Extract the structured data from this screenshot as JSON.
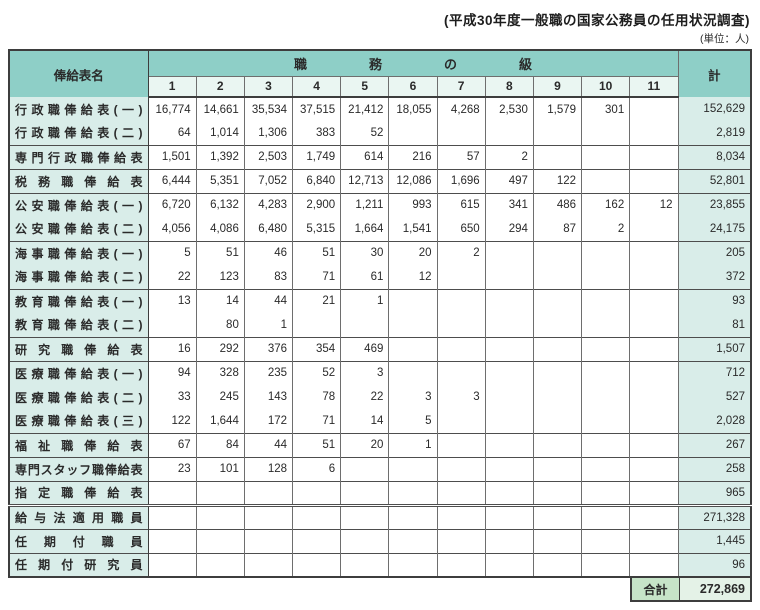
{
  "page": {
    "title": "(平成30年度一般職の国家公務員の任用状況調査)",
    "unit_note": "(単位：人)"
  },
  "table": {
    "type": "table",
    "corner_header": "俸給表名",
    "grade_header": "職務の級",
    "total_header": "計",
    "grades": [
      "1",
      "2",
      "3",
      "4",
      "5",
      "6",
      "7",
      "8",
      "9",
      "10",
      "11"
    ],
    "rows": [
      {
        "label": "行政職俸給表(一)",
        "section_start": false,
        "double_above": false,
        "values": [
          "16,774",
          "14,661",
          "35,534",
          "37,515",
          "21,412",
          "18,055",
          "4,268",
          "2,530",
          "1,579",
          "301",
          ""
        ],
        "total": "152,629"
      },
      {
        "label": "行政職俸給表(二)",
        "section_start": false,
        "double_above": false,
        "values": [
          "64",
          "1,014",
          "1,306",
          "383",
          "52",
          "",
          "",
          "",
          "",
          "",
          ""
        ],
        "total": "2,819"
      },
      {
        "label": "専門行政職俸給表",
        "section_start": true,
        "double_above": false,
        "values": [
          "1,501",
          "1,392",
          "2,503",
          "1,749",
          "614",
          "216",
          "57",
          "2",
          "",
          "",
          ""
        ],
        "total": "8,034"
      },
      {
        "label": "税務職俸給表",
        "section_start": true,
        "double_above": false,
        "values": [
          "6,444",
          "5,351",
          "7,052",
          "6,840",
          "12,713",
          "12,086",
          "1,696",
          "497",
          "122",
          "",
          ""
        ],
        "total": "52,801"
      },
      {
        "label": "公安職俸給表(一)",
        "section_start": true,
        "double_above": false,
        "values": [
          "6,720",
          "6,132",
          "4,283",
          "2,900",
          "1,211",
          "993",
          "615",
          "341",
          "486",
          "162",
          "12"
        ],
        "total": "23,855"
      },
      {
        "label": "公安職俸給表(二)",
        "section_start": false,
        "double_above": false,
        "values": [
          "4,056",
          "4,086",
          "6,480",
          "5,315",
          "1,664",
          "1,541",
          "650",
          "294",
          "87",
          "2",
          ""
        ],
        "total": "24,175"
      },
      {
        "label": "海事職俸給表(一)",
        "section_start": true,
        "double_above": false,
        "values": [
          "5",
          "51",
          "46",
          "51",
          "30",
          "20",
          "2",
          "",
          "",
          "",
          ""
        ],
        "total": "205"
      },
      {
        "label": "海事職俸給表(二)",
        "section_start": false,
        "double_above": false,
        "values": [
          "22",
          "123",
          "83",
          "71",
          "61",
          "12",
          "",
          "",
          "",
          "",
          ""
        ],
        "total": "372"
      },
      {
        "label": "教育職俸給表(一)",
        "section_start": true,
        "double_above": false,
        "values": [
          "13",
          "14",
          "44",
          "21",
          "1",
          "",
          "",
          "",
          "",
          "",
          ""
        ],
        "total": "93"
      },
      {
        "label": "教育職俸給表(二)",
        "section_start": false,
        "double_above": false,
        "values": [
          "",
          "80",
          "1",
          "",
          "",
          "",
          "",
          "",
          "",
          "",
          ""
        ],
        "total": "81"
      },
      {
        "label": "研究職俸給表",
        "section_start": true,
        "double_above": false,
        "values": [
          "16",
          "292",
          "376",
          "354",
          "469",
          "",
          "",
          "",
          "",
          "",
          ""
        ],
        "total": "1,507"
      },
      {
        "label": "医療職俸給表(一)",
        "section_start": true,
        "double_above": false,
        "values": [
          "94",
          "328",
          "235",
          "52",
          "3",
          "",
          "",
          "",
          "",
          "",
          ""
        ],
        "total": "712"
      },
      {
        "label": "医療職俸給表(二)",
        "section_start": false,
        "double_above": false,
        "values": [
          "33",
          "245",
          "143",
          "78",
          "22",
          "3",
          "3",
          "",
          "",
          "",
          ""
        ],
        "total": "527"
      },
      {
        "label": "医療職俸給表(三)",
        "section_start": false,
        "double_above": false,
        "values": [
          "122",
          "1,644",
          "172",
          "71",
          "14",
          "5",
          "",
          "",
          "",
          "",
          ""
        ],
        "total": "2,028"
      },
      {
        "label": "福祉職俸給表",
        "section_start": true,
        "double_above": false,
        "values": [
          "67",
          "84",
          "44",
          "51",
          "20",
          "1",
          "",
          "",
          "",
          "",
          ""
        ],
        "total": "267"
      },
      {
        "label": "専門スタッフ職俸給表",
        "section_start": true,
        "double_above": false,
        "values": [
          "23",
          "101",
          "128",
          "6",
          "",
          "",
          "",
          "",
          "",
          "",
          ""
        ],
        "total": "258"
      },
      {
        "label": "指定職俸給表",
        "section_start": true,
        "double_above": false,
        "values": [
          "",
          "",
          "",
          "",
          "",
          "",
          "",
          "",
          "",
          "",
          ""
        ],
        "total": "965"
      },
      {
        "label": "給与法適用職員",
        "section_start": false,
        "double_above": true,
        "values": [
          "",
          "",
          "",
          "",
          "",
          "",
          "",
          "",
          "",
          "",
          ""
        ],
        "total": "271,328"
      },
      {
        "label": "任期付職員",
        "section_start": true,
        "double_above": false,
        "values": [
          "",
          "",
          "",
          "",
          "",
          "",
          "",
          "",
          "",
          "",
          ""
        ],
        "total": "1,445"
      },
      {
        "label": "任期付研究員",
        "section_start": true,
        "double_above": false,
        "values": [
          "",
          "",
          "",
          "",
          "",
          "",
          "",
          "",
          "",
          "",
          ""
        ],
        "total": "96"
      }
    ],
    "grand_total_label": "合計",
    "grand_total": "272,869"
  },
  "colors": {
    "header_teal": "#8ecfc7",
    "subheader_mint": "#eaf6f2",
    "label_teal": "#d9ede9",
    "grand_label_green": "#c6e4c8",
    "grand_value_green": "#e4f2e7"
  }
}
